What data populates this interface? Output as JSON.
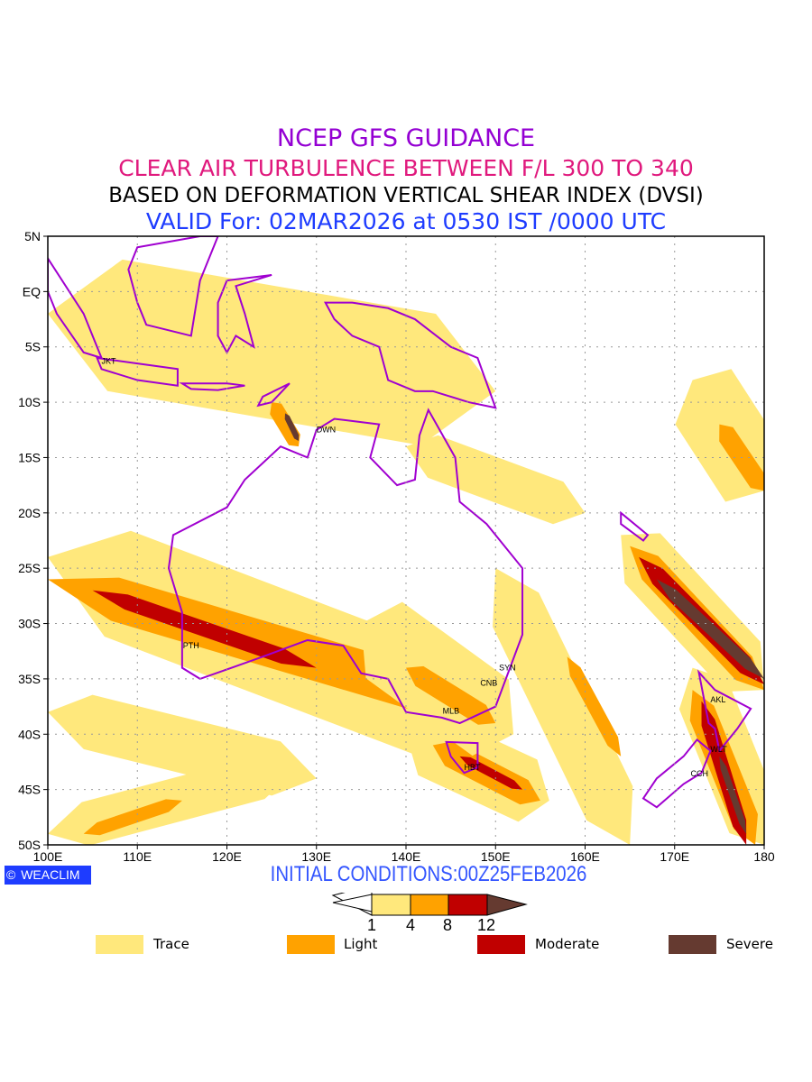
{
  "titles": {
    "line1": "NCEP GFS GUIDANCE",
    "line2": "CLEAR AIR TURBULENCE BETWEEN F/L 300 TO 340",
    "line3": "BASED ON DEFORMATION VERTICAL SHEAR INDEX (DVSI)",
    "line4": "VALID For: 02MAR2026 at 0530 IST /0000 UTC"
  },
  "map": {
    "lon_range": [
      100,
      180
    ],
    "lat_range": [
      -50,
      5
    ],
    "lon_ticks": [
      "100E",
      "110E",
      "120E",
      "130E",
      "140E",
      "150E",
      "160E",
      "170E",
      "180"
    ],
    "lat_ticks": [
      "5N",
      "EQ",
      "5S",
      "10S",
      "15S",
      "20S",
      "25S",
      "30S",
      "35S",
      "40S",
      "45S",
      "50S"
    ],
    "cities": [
      {
        "name": "JKT",
        "lon": 106.8,
        "lat": -6.2
      },
      {
        "name": "DWN",
        "lon": 130.8,
        "lat": -12.4
      },
      {
        "name": "PTH",
        "lon": 115.9,
        "lat": -31.9
      },
      {
        "name": "SYN",
        "lon": 151.2,
        "lat": -33.9
      },
      {
        "name": "CNB",
        "lon": 149.1,
        "lat": -35.3
      },
      {
        "name": "MLB",
        "lon": 144.9,
        "lat": -37.8
      },
      {
        "name": "HBT",
        "lon": 147.3,
        "lat": -42.9
      },
      {
        "name": "AKL",
        "lon": 174.8,
        "lat": -36.8
      },
      {
        "name": "WLT",
        "lon": 174.8,
        "lat": -41.3
      },
      {
        "name": "CCH",
        "lon": 172.6,
        "lat": -43.5
      }
    ]
  },
  "colors": {
    "trace": "#ffe87c",
    "light": "#ffa200",
    "moderate": "#c00000",
    "severe": "#653a30",
    "coast": "#a000d0"
  },
  "footer": {
    "logo": "WEACLIM",
    "initial": "INITIAL CONDITIONS:00Z25FEB2026"
  },
  "colorbar": {
    "ticks": [
      "1",
      "4",
      "8",
      "12"
    ]
  },
  "legend": [
    {
      "label": "Trace"
    },
    {
      "label": "Light"
    },
    {
      "label": "Moderate"
    },
    {
      "label": "Severe"
    }
  ]
}
